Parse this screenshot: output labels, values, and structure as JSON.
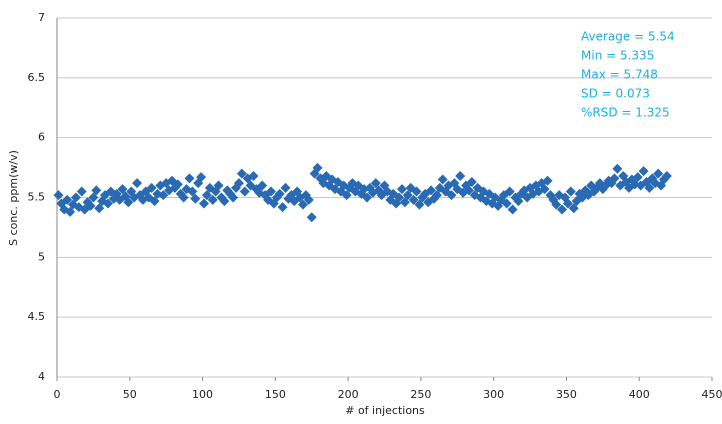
{
  "chart_data": {
    "type": "scatter",
    "ylabel": "S conc. ppm(w/v)",
    "xlabel": "# of injections",
    "annotations": [
      "Average = 5.54",
      "Min = 5.335",
      "Max = 5.748",
      "SD = 0.073",
      "%RSD = 1.325"
    ],
    "annotation_color": "#1cb0e6",
    "color": "#2a6ab3",
    "grid": true,
    "xlim": [
      0,
      450
    ],
    "xticks": [
      0,
      50,
      100,
      150,
      200,
      250,
      300,
      350,
      400,
      450
    ],
    "ylim": [
      4,
      7
    ],
    "yticks": [
      4,
      4.5,
      5,
      5.5,
      6,
      6.5,
      7
    ],
    "x": [
      1,
      3,
      5,
      7,
      9,
      11,
      13,
      15,
      17,
      19,
      21,
      23,
      25,
      27,
      29,
      31,
      33,
      35,
      37,
      39,
      41,
      43,
      45,
      47,
      49,
      51,
      53,
      55,
      57,
      59,
      61,
      63,
      65,
      67,
      69,
      71,
      73,
      75,
      77,
      79,
      81,
      83,
      85,
      87,
      89,
      91,
      93,
      95,
      97,
      99,
      101,
      103,
      105,
      107,
      109,
      111,
      113,
      115,
      117,
      119,
      121,
      123,
      125,
      127,
      129,
      131,
      133,
      135,
      137,
      139,
      141,
      143,
      145,
      147,
      149,
      151,
      153,
      155,
      157,
      159,
      161,
      163,
      165,
      167,
      169,
      171,
      173,
      175,
      177,
      179,
      181,
      183,
      185,
      187,
      189,
      191,
      193,
      195,
      197,
      199,
      201,
      203,
      205,
      207,
      209,
      211,
      213,
      215,
      217,
      219,
      221,
      223,
      225,
      227,
      229,
      231,
      233,
      235,
      237,
      239,
      241,
      243,
      245,
      247,
      249,
      251,
      253,
      255,
      257,
      259,
      261,
      263,
      265,
      267,
      269,
      271,
      273,
      275,
      277,
      279,
      281,
      283,
      285,
      287,
      289,
      291,
      293,
      295,
      297,
      299,
      301,
      303,
      305,
      307,
      309,
      311,
      313,
      315,
      317,
      319,
      321,
      323,
      325,
      327,
      329,
      331,
      333,
      335,
      337,
      339,
      341,
      343,
      345,
      347,
      349,
      351,
      353,
      355,
      357,
      359,
      361,
      363,
      365,
      367,
      369,
      371,
      373,
      375,
      377,
      379,
      381,
      383,
      385,
      387,
      389,
      391,
      393,
      395,
      397,
      399,
      401,
      403,
      405,
      407,
      409,
      411,
      413,
      415,
      417,
      419
    ],
    "values": [
      5.52,
      5.45,
      5.4,
      5.48,
      5.38,
      5.44,
      5.5,
      5.42,
      5.55,
      5.4,
      5.46,
      5.43,
      5.5,
      5.56,
      5.41,
      5.47,
      5.52,
      5.45,
      5.55,
      5.49,
      5.53,
      5.48,
      5.57,
      5.51,
      5.46,
      5.55,
      5.5,
      5.62,
      5.52,
      5.48,
      5.55,
      5.5,
      5.58,
      5.47,
      5.53,
      5.6,
      5.52,
      5.62,
      5.56,
      5.64,
      5.58,
      5.61,
      5.53,
      5.5,
      5.57,
      5.66,
      5.55,
      5.49,
      5.62,
      5.67,
      5.45,
      5.52,
      5.58,
      5.48,
      5.55,
      5.6,
      5.5,
      5.47,
      5.56,
      5.53,
      5.5,
      5.58,
      5.62,
      5.7,
      5.55,
      5.66,
      5.6,
      5.68,
      5.57,
      5.54,
      5.6,
      5.52,
      5.48,
      5.55,
      5.45,
      5.5,
      5.53,
      5.42,
      5.58,
      5.49,
      5.52,
      5.47,
      5.55,
      5.5,
      5.44,
      5.52,
      5.48,
      5.335,
      5.7,
      5.748,
      5.66,
      5.62,
      5.68,
      5.6,
      5.65,
      5.57,
      5.63,
      5.55,
      5.6,
      5.52,
      5.58,
      5.62,
      5.55,
      5.6,
      5.53,
      5.57,
      5.5,
      5.58,
      5.54,
      5.62,
      5.56,
      5.52,
      5.6,
      5.55,
      5.48,
      5.53,
      5.45,
      5.5,
      5.57,
      5.46,
      5.52,
      5.58,
      5.48,
      5.55,
      5.44,
      5.5,
      5.53,
      5.46,
      5.56,
      5.49,
      5.52,
      5.58,
      5.65,
      5.55,
      5.6,
      5.52,
      5.62,
      5.57,
      5.68,
      5.54,
      5.6,
      5.56,
      5.63,
      5.52,
      5.58,
      5.5,
      5.55,
      5.47,
      5.53,
      5.45,
      5.5,
      5.43,
      5.48,
      5.52,
      5.45,
      5.55,
      5.4,
      5.5,
      5.47,
      5.53,
      5.56,
      5.5,
      5.58,
      5.53,
      5.6,
      5.55,
      5.62,
      5.57,
      5.64,
      5.52,
      5.48,
      5.44,
      5.52,
      5.4,
      5.5,
      5.45,
      5.55,
      5.41,
      5.47,
      5.53,
      5.5,
      5.56,
      5.52,
      5.6,
      5.55,
      5.58,
      5.62,
      5.57,
      5.6,
      5.64,
      5.62,
      5.66,
      5.74,
      5.6,
      5.68,
      5.63,
      5.58,
      5.65,
      5.61,
      5.67,
      5.6,
      5.72,
      5.63,
      5.58,
      5.66,
      5.62,
      5.7,
      5.6,
      5.65,
      5.68
    ]
  }
}
